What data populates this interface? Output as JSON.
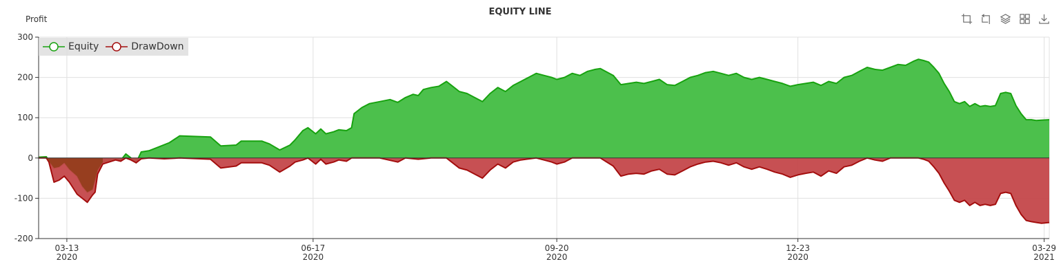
{
  "chart_data": {
    "type": "area",
    "title": "EQUITY LINE",
    "ylabel": "Profit",
    "ylim": [
      -200,
      300
    ],
    "yticks": [
      "300",
      "200",
      "100",
      "0",
      "-100",
      "-200"
    ],
    "xlim": [
      "2020-03-02",
      "2021-03-31"
    ],
    "xticks": [
      {
        "date": "2020-03-13",
        "line1": "03-13",
        "line2": "2020"
      },
      {
        "date": "2020-06-17",
        "line1": "06-17",
        "line2": "2020"
      },
      {
        "date": "2020-09-20",
        "line1": "09-20",
        "line2": "2020"
      },
      {
        "date": "2020-12-23",
        "line1": "12-23",
        "line2": "2020"
      },
      {
        "date": "2021-03-29",
        "line1": "03-29",
        "line2": "2021"
      }
    ],
    "grid": true,
    "legend_position": "top-left",
    "series": [
      {
        "name": "Equity",
        "color": "#17a20f",
        "fill": "#4cc04c",
        "points": [
          [
            "2020-03-02",
            2
          ],
          [
            "2020-03-05",
            3
          ],
          [
            "2020-03-06",
            -8
          ],
          [
            "2020-03-08",
            -25
          ],
          [
            "2020-03-10",
            -22
          ],
          [
            "2020-03-12",
            -12
          ],
          [
            "2020-03-14",
            -28
          ],
          [
            "2020-03-17",
            -45
          ],
          [
            "2020-03-19",
            -70
          ],
          [
            "2020-03-21",
            -85
          ],
          [
            "2020-03-23",
            -78
          ],
          [
            "2020-03-25",
            -30
          ],
          [
            "2020-03-27",
            -10
          ],
          [
            "2020-04-01",
            -3
          ],
          [
            "2020-04-03",
            -6
          ],
          [
            "2020-04-05",
            10
          ],
          [
            "2020-04-07",
            0
          ],
          [
            "2020-04-09",
            -12
          ],
          [
            "2020-04-11",
            15
          ],
          [
            "2020-04-14",
            18
          ],
          [
            "2020-04-18",
            28
          ],
          [
            "2020-04-22",
            38
          ],
          [
            "2020-04-26",
            55
          ],
          [
            "2020-05-08",
            52
          ],
          [
            "2020-05-12",
            30
          ],
          [
            "2020-05-18",
            32
          ],
          [
            "2020-05-20",
            42
          ],
          [
            "2020-05-28",
            42
          ],
          [
            "2020-05-31",
            35
          ],
          [
            "2020-06-04",
            20
          ],
          [
            "2020-06-08",
            32
          ],
          [
            "2020-06-10",
            45
          ],
          [
            "2020-06-13",
            68
          ],
          [
            "2020-06-15",
            75
          ],
          [
            "2020-06-18",
            60
          ],
          [
            "2020-06-20",
            72
          ],
          [
            "2020-06-22",
            60
          ],
          [
            "2020-06-25",
            65
          ],
          [
            "2020-06-27",
            70
          ],
          [
            "2020-06-30",
            68
          ],
          [
            "2020-07-02",
            75
          ],
          [
            "2020-07-03",
            110
          ],
          [
            "2020-07-06",
            125
          ],
          [
            "2020-07-09",
            135
          ],
          [
            "2020-07-13",
            140
          ],
          [
            "2020-07-17",
            145
          ],
          [
            "2020-07-20",
            138
          ],
          [
            "2020-07-23",
            150
          ],
          [
            "2020-07-26",
            158
          ],
          [
            "2020-07-28",
            155
          ],
          [
            "2020-07-30",
            170
          ],
          [
            "2020-08-02",
            175
          ],
          [
            "2020-08-05",
            178
          ],
          [
            "2020-08-08",
            190
          ],
          [
            "2020-08-10",
            180
          ],
          [
            "2020-08-13",
            165
          ],
          [
            "2020-08-16",
            160
          ],
          [
            "2020-08-19",
            150
          ],
          [
            "2020-08-22",
            140
          ],
          [
            "2020-08-25",
            160
          ],
          [
            "2020-08-28",
            175
          ],
          [
            "2020-08-31",
            165
          ],
          [
            "2020-09-03",
            180
          ],
          [
            "2020-09-06",
            190
          ],
          [
            "2020-09-09",
            200
          ],
          [
            "2020-09-12",
            210
          ],
          [
            "2020-09-15",
            205
          ],
          [
            "2020-09-18",
            200
          ],
          [
            "2020-09-20",
            195
          ],
          [
            "2020-09-23",
            200
          ],
          [
            "2020-09-26",
            210
          ],
          [
            "2020-09-29",
            205
          ],
          [
            "2020-10-02",
            215
          ],
          [
            "2020-10-05",
            220
          ],
          [
            "2020-10-07",
            222
          ],
          [
            "2020-10-09",
            215
          ],
          [
            "2020-10-12",
            205
          ],
          [
            "2020-10-15",
            182
          ],
          [
            "2020-10-18",
            185
          ],
          [
            "2020-10-21",
            188
          ],
          [
            "2020-10-24",
            185
          ],
          [
            "2020-10-27",
            190
          ],
          [
            "2020-10-30",
            195
          ],
          [
            "2020-11-02",
            182
          ],
          [
            "2020-11-05",
            180
          ],
          [
            "2020-11-08",
            190
          ],
          [
            "2020-11-11",
            200
          ],
          [
            "2020-11-14",
            205
          ],
          [
            "2020-11-17",
            212
          ],
          [
            "2020-11-20",
            215
          ],
          [
            "2020-11-23",
            210
          ],
          [
            "2020-11-26",
            205
          ],
          [
            "2020-11-29",
            210
          ],
          [
            "2020-12-02",
            200
          ],
          [
            "2020-12-05",
            195
          ],
          [
            "2020-12-08",
            200
          ],
          [
            "2020-12-11",
            195
          ],
          [
            "2020-12-14",
            190
          ],
          [
            "2020-12-17",
            185
          ],
          [
            "2020-12-20",
            178
          ],
          [
            "2020-12-23",
            182
          ],
          [
            "2020-12-26",
            185
          ],
          [
            "2020-12-29",
            188
          ],
          [
            "2021-01-01",
            180
          ],
          [
            "2021-01-04",
            190
          ],
          [
            "2021-01-07",
            185
          ],
          [
            "2021-01-10",
            200
          ],
          [
            "2021-01-13",
            205
          ],
          [
            "2021-01-16",
            215
          ],
          [
            "2021-01-19",
            225
          ],
          [
            "2021-01-22",
            220
          ],
          [
            "2021-01-25",
            218
          ],
          [
            "2021-01-28",
            225
          ],
          [
            "2021-01-31",
            232
          ],
          [
            "2021-02-03",
            230
          ],
          [
            "2021-02-06",
            240
          ],
          [
            "2021-02-08",
            245
          ],
          [
            "2021-02-10",
            242
          ],
          [
            "2021-02-12",
            238
          ],
          [
            "2021-02-14",
            225
          ],
          [
            "2021-02-16",
            210
          ],
          [
            "2021-02-18",
            185
          ],
          [
            "2021-02-20",
            165
          ],
          [
            "2021-02-22",
            140
          ],
          [
            "2021-02-24",
            135
          ],
          [
            "2021-02-26",
            140
          ],
          [
            "2021-02-28",
            128
          ],
          [
            "2021-03-02",
            135
          ],
          [
            "2021-03-04",
            128
          ],
          [
            "2021-03-06",
            130
          ],
          [
            "2021-03-08",
            128
          ],
          [
            "2021-03-10",
            130
          ],
          [
            "2021-03-12",
            160
          ],
          [
            "2021-03-14",
            163
          ],
          [
            "2021-03-16",
            160
          ],
          [
            "2021-03-18",
            130
          ],
          [
            "2021-03-20",
            110
          ],
          [
            "2021-03-22",
            95
          ],
          [
            "2021-03-24",
            95
          ],
          [
            "2021-03-26",
            93
          ],
          [
            "2021-03-28",
            94
          ],
          [
            "2021-03-31",
            95
          ]
        ]
      },
      {
        "name": "DrawDown",
        "color": "#a30d0d",
        "fill": "#c4474a",
        "points": [
          [
            "2020-03-02",
            0
          ],
          [
            "2020-03-05",
            0
          ],
          [
            "2020-03-06",
            -10
          ],
          [
            "2020-03-08",
            -60
          ],
          [
            "2020-03-10",
            -55
          ],
          [
            "2020-03-12",
            -45
          ],
          [
            "2020-03-14",
            -60
          ],
          [
            "2020-03-17",
            -90
          ],
          [
            "2020-03-19",
            -100
          ],
          [
            "2020-03-21",
            -110
          ],
          [
            "2020-03-23",
            -92
          ],
          [
            "2020-03-24",
            -85
          ],
          [
            "2020-03-25",
            -40
          ],
          [
            "2020-03-27",
            -15
          ],
          [
            "2020-04-01",
            -5
          ],
          [
            "2020-04-03",
            -8
          ],
          [
            "2020-04-05",
            0
          ],
          [
            "2020-04-07",
            -5
          ],
          [
            "2020-04-09",
            -12
          ],
          [
            "2020-04-11",
            -2
          ],
          [
            "2020-04-14",
            0
          ],
          [
            "2020-04-20",
            -2
          ],
          [
            "2020-04-26",
            0
          ],
          [
            "2020-05-08",
            -3
          ],
          [
            "2020-05-12",
            -25
          ],
          [
            "2020-05-18",
            -20
          ],
          [
            "2020-05-20",
            -12
          ],
          [
            "2020-05-28",
            -12
          ],
          [
            "2020-05-31",
            -18
          ],
          [
            "2020-06-04",
            -35
          ],
          [
            "2020-06-08",
            -20
          ],
          [
            "2020-06-10",
            -10
          ],
          [
            "2020-06-13",
            -5
          ],
          [
            "2020-06-15",
            0
          ],
          [
            "2020-06-18",
            -15
          ],
          [
            "2020-06-20",
            -3
          ],
          [
            "2020-06-22",
            -15
          ],
          [
            "2020-06-25",
            -10
          ],
          [
            "2020-06-27",
            -5
          ],
          [
            "2020-06-30",
            -8
          ],
          [
            "2020-07-02",
            0
          ],
          [
            "2020-07-13",
            0
          ],
          [
            "2020-07-20",
            -10
          ],
          [
            "2020-07-23",
            0
          ],
          [
            "2020-07-28",
            -3
          ],
          [
            "2020-08-02",
            0
          ],
          [
            "2020-08-08",
            0
          ],
          [
            "2020-08-10",
            -10
          ],
          [
            "2020-08-13",
            -25
          ],
          [
            "2020-08-16",
            -30
          ],
          [
            "2020-08-19",
            -40
          ],
          [
            "2020-08-22",
            -50
          ],
          [
            "2020-08-25",
            -30
          ],
          [
            "2020-08-28",
            -15
          ],
          [
            "2020-08-31",
            -25
          ],
          [
            "2020-09-03",
            -10
          ],
          [
            "2020-09-06",
            -5
          ],
          [
            "2020-09-12",
            0
          ],
          [
            "2020-09-15",
            -5
          ],
          [
            "2020-09-18",
            -10
          ],
          [
            "2020-09-20",
            -15
          ],
          [
            "2020-09-23",
            -10
          ],
          [
            "2020-09-26",
            0
          ],
          [
            "2020-10-05",
            0
          ],
          [
            "2020-10-07",
            0
          ],
          [
            "2020-10-09",
            -8
          ],
          [
            "2020-10-12",
            -20
          ],
          [
            "2020-10-15",
            -45
          ],
          [
            "2020-10-18",
            -40
          ],
          [
            "2020-10-21",
            -38
          ],
          [
            "2020-10-24",
            -40
          ],
          [
            "2020-10-27",
            -32
          ],
          [
            "2020-10-30",
            -28
          ],
          [
            "2020-11-02",
            -40
          ],
          [
            "2020-11-05",
            -42
          ],
          [
            "2020-11-08",
            -32
          ],
          [
            "2020-11-11",
            -22
          ],
          [
            "2020-11-14",
            -15
          ],
          [
            "2020-11-17",
            -10
          ],
          [
            "2020-11-20",
            -8
          ],
          [
            "2020-11-23",
            -12
          ],
          [
            "2020-11-26",
            -18
          ],
          [
            "2020-11-29",
            -12
          ],
          [
            "2020-12-02",
            -22
          ],
          [
            "2020-12-05",
            -28
          ],
          [
            "2020-12-08",
            -22
          ],
          [
            "2020-12-11",
            -28
          ],
          [
            "2020-12-14",
            -35
          ],
          [
            "2020-12-17",
            -40
          ],
          [
            "2020-12-20",
            -48
          ],
          [
            "2020-12-23",
            -42
          ],
          [
            "2020-12-26",
            -38
          ],
          [
            "2020-12-29",
            -35
          ],
          [
            "2021-01-01",
            -45
          ],
          [
            "2021-01-04",
            -32
          ],
          [
            "2021-01-07",
            -38
          ],
          [
            "2021-01-10",
            -22
          ],
          [
            "2021-01-13",
            -18
          ],
          [
            "2021-01-16",
            -8
          ],
          [
            "2021-01-19",
            0
          ],
          [
            "2021-01-22",
            -5
          ],
          [
            "2021-01-25",
            -8
          ],
          [
            "2021-01-28",
            0
          ],
          [
            "2021-02-08",
            0
          ],
          [
            "2021-02-10",
            -3
          ],
          [
            "2021-02-12",
            -8
          ],
          [
            "2021-02-14",
            -22
          ],
          [
            "2021-02-16",
            -38
          ],
          [
            "2021-02-18",
            -62
          ],
          [
            "2021-02-20",
            -82
          ],
          [
            "2021-02-22",
            -105
          ],
          [
            "2021-02-24",
            -110
          ],
          [
            "2021-02-26",
            -105
          ],
          [
            "2021-02-28",
            -118
          ],
          [
            "2021-03-02",
            -110
          ],
          [
            "2021-03-04",
            -118
          ],
          [
            "2021-03-06",
            -115
          ],
          [
            "2021-03-08",
            -118
          ],
          [
            "2021-03-10",
            -115
          ],
          [
            "2021-03-12",
            -88
          ],
          [
            "2021-03-14",
            -85
          ],
          [
            "2021-03-16",
            -88
          ],
          [
            "2021-03-18",
            -118
          ],
          [
            "2021-03-20",
            -140
          ],
          [
            "2021-03-22",
            -155
          ],
          [
            "2021-03-24",
            -158
          ],
          [
            "2021-03-26",
            -160
          ],
          [
            "2021-03-28",
            -162
          ],
          [
            "2021-03-31",
            -160
          ]
        ]
      }
    ]
  },
  "toolbox": {
    "items": [
      {
        "icon": "zoom-icon"
      },
      {
        "icon": "zoom-reset-icon"
      },
      {
        "icon": "layers-icon"
      },
      {
        "icon": "grid-icon"
      },
      {
        "icon": "download-icon"
      }
    ]
  }
}
